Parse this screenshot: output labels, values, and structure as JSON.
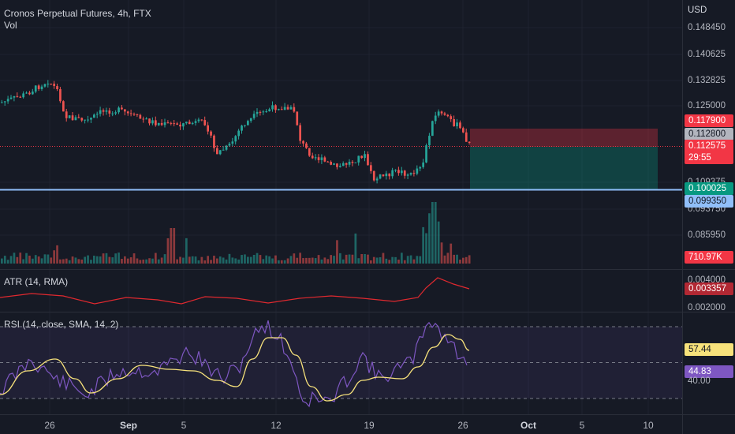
{
  "header": {
    "title": "Cronos Perpetual Futures, 4h, FTX",
    "vol_label": "Vol"
  },
  "price_axis": {
    "currency": "USD",
    "ticks": [
      "0.148450",
      "0.140625",
      "0.132825",
      "0.125000",
      "0.109375",
      "0.093750",
      "0.085950"
    ]
  },
  "price_tags": [
    {
      "value": "0.117900",
      "bg": "#f23645",
      "fg": "#ffffff"
    },
    {
      "value": "0.112800",
      "bg": "#b2b5be",
      "fg": "#131722"
    },
    {
      "value": "0.112575",
      "bg": "#f23645",
      "fg": "#ffffff"
    },
    {
      "value": "29:55",
      "bg": "#f23645",
      "fg": "#ffffff"
    },
    {
      "value": "0.100025",
      "bg": "#089981",
      "fg": "#ffffff"
    },
    {
      "value": "0.099350",
      "bg": "#90bff9",
      "fg": "#131722"
    },
    {
      "value": "710.97K",
      "bg": "#f23645",
      "fg": "#ffffff"
    }
  ],
  "atr": {
    "label": "ATR (14, RMA)",
    "ticks": [
      "0.004000",
      "0.002000"
    ],
    "value": "0.003357",
    "color": "#e0292f"
  },
  "rsi": {
    "label": "RSI (14, close, SMA, 14, 2)",
    "ticks": [
      "40.00"
    ],
    "rsi_value": "44.83",
    "sma_value": "57.44",
    "rsi_color": "#7e57c2",
    "sma_color": "#f7e27b"
  },
  "time_axis": {
    "labels": [
      {
        "text": "26",
        "bold": false
      },
      {
        "text": "Sep",
        "bold": true
      },
      {
        "text": "5",
        "bold": false
      },
      {
        "text": "12",
        "bold": false
      },
      {
        "text": "19",
        "bold": false
      },
      {
        "text": "26",
        "bold": false
      },
      {
        "text": "Oct",
        "bold": true
      },
      {
        "text": "5",
        "bold": false
      },
      {
        "text": "10",
        "bold": false
      }
    ]
  },
  "colors": {
    "up": "#26a69a",
    "down": "#ef5350",
    "background": "#161a25",
    "horizontal_line": "#90bff9"
  }
}
